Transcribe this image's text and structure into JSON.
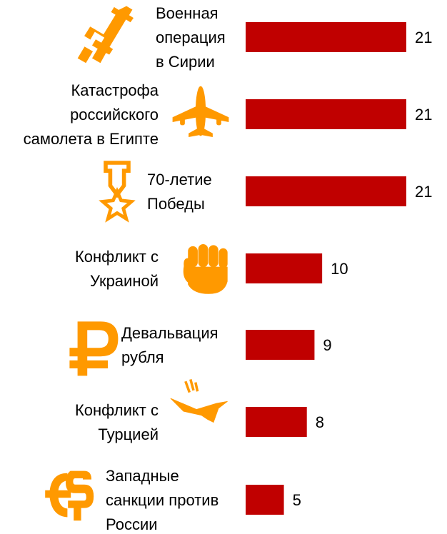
{
  "chart_data": {
    "type": "bar",
    "orientation": "horizontal",
    "categories": [
      [
        "Военная",
        "операция",
        "в Сирии"
      ],
      [
        "Катастрофа",
        "российского",
        "самолета в Египте"
      ],
      [
        "70-летие",
        "Победы"
      ],
      [
        "Конфликт с",
        "Украиной"
      ],
      [
        "Девальвация",
        "рубля"
      ],
      [
        "Конфликт с",
        "Турцией"
      ],
      [
        "Западные",
        "санкции против",
        "России"
      ]
    ],
    "values": [
      21,
      21,
      21,
      10,
      9,
      8,
      5
    ],
    "icons": [
      "rifle-icon",
      "airplane-icon",
      "medal-star-icon",
      "fist-icon",
      "ruble-icon",
      "falling-jet-icon",
      "euro-dollar-icon"
    ],
    "bar_color": "#c00000",
    "icon_color": "#ff9900",
    "xlim": [
      0,
      21
    ],
    "grid": false,
    "legend": "none"
  }
}
